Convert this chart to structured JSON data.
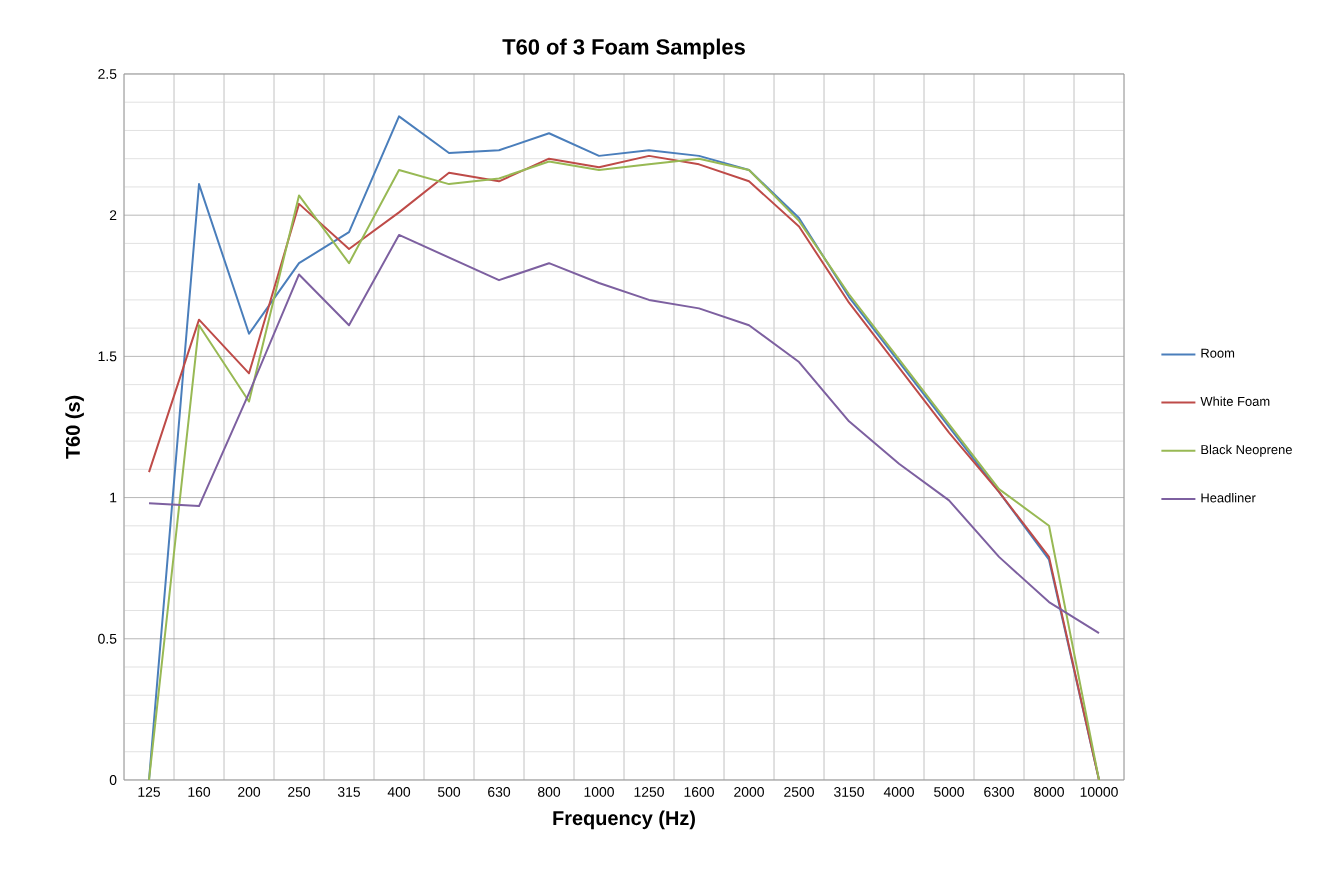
{
  "chart_data": {
    "type": "line",
    "title": "T60 of 3 Foam Samples",
    "xlabel": "Frequency (Hz)",
    "ylabel": "T60 (s)",
    "categories": [
      "125",
      "160",
      "200",
      "250",
      "315",
      "400",
      "500",
      "630",
      "800",
      "1000",
      "1250",
      "1600",
      "2000",
      "2500",
      "3150",
      "4000",
      "5000",
      "6300",
      "8000",
      "10000"
    ],
    "series": [
      {
        "name": "Room",
        "color": "#4a7ebb",
        "values": [
          0,
          2.11,
          1.58,
          1.83,
          1.94,
          2.35,
          2.22,
          2.23,
          2.29,
          2.21,
          2.23,
          2.21,
          2.16,
          1.99,
          1.71,
          1.48,
          1.25,
          1.02,
          0.78,
          0
        ]
      },
      {
        "name": "White Foam",
        "color": "#be4b48",
        "values": [
          1.09,
          1.63,
          1.44,
          2.04,
          1.88,
          2.01,
          2.15,
          2.12,
          2.2,
          2.17,
          2.21,
          2.18,
          2.12,
          1.96,
          1.69,
          1.46,
          1.23,
          1.02,
          0.79,
          0
        ]
      },
      {
        "name": "Black Neoprene",
        "color": "#98b954",
        "values": [
          0,
          1.61,
          1.34,
          2.07,
          1.83,
          2.16,
          2.11,
          2.13,
          2.19,
          2.16,
          2.18,
          2.2,
          2.16,
          1.98,
          1.72,
          1.49,
          1.26,
          1.03,
          0.9,
          0
        ]
      },
      {
        "name": "Headliner",
        "color": "#7d60a0",
        "values": [
          0.98,
          0.97,
          1.37,
          1.79,
          1.61,
          1.93,
          1.85,
          1.77,
          1.83,
          1.76,
          1.7,
          1.67,
          1.61,
          1.48,
          1.27,
          1.12,
          0.99,
          0.79,
          0.63,
          0.52
        ]
      }
    ],
    "ylim": [
      0,
      2.5
    ],
    "yticks": [
      0,
      0.5,
      1,
      1.5,
      2,
      2.5
    ],
    "grid": true,
    "legend": "right"
  }
}
